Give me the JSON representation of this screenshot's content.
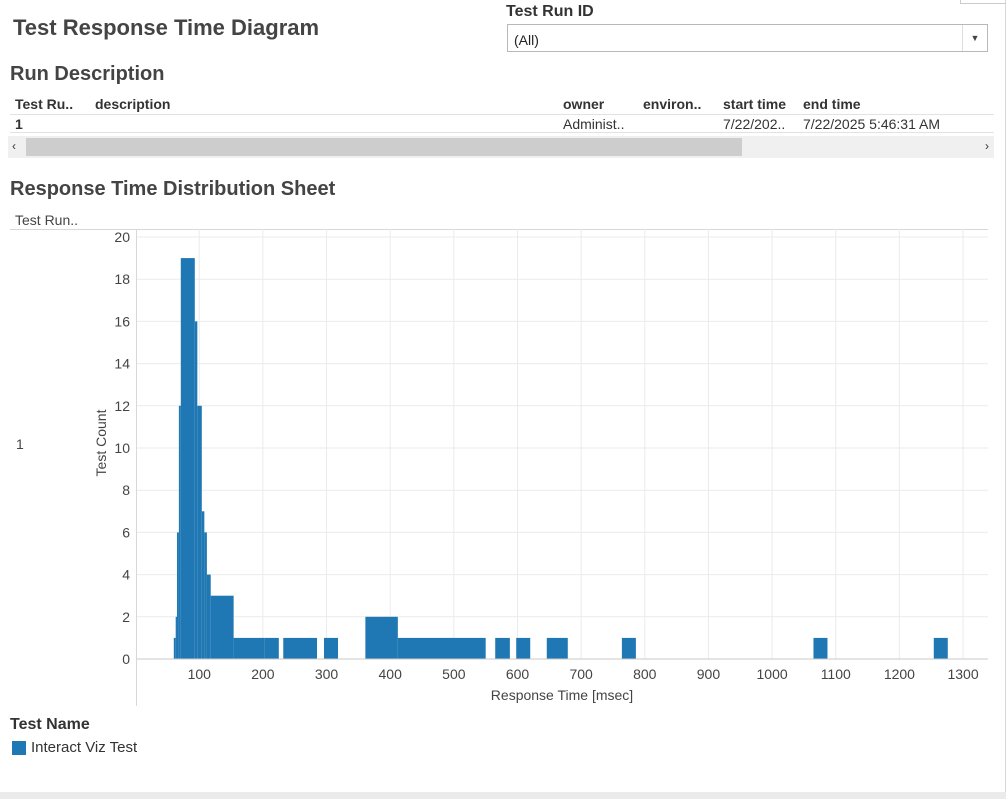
{
  "dashboard": {
    "title": "Test Response Time Diagram"
  },
  "filter": {
    "label": "Test Run ID",
    "value": "(All)"
  },
  "run_description": {
    "title": "Run Description",
    "columns": [
      "Test Ru..",
      "description",
      "owner",
      "environ..",
      "start time",
      "end time"
    ],
    "row": {
      "test_run": "1",
      "description": "",
      "owner": "Administ..",
      "environment": "",
      "start_time": "7/22/202..",
      "end_time": "7/22/2025 5:46:31 AM"
    }
  },
  "distribution": {
    "title": "Response Time Distribution Sheet",
    "row_header": "Test Run..",
    "row_value": "1"
  },
  "legend": {
    "title": "Test Name",
    "item": "Interact Viz Test"
  },
  "colors": {
    "bar": "#1f77b4",
    "grid": "#ebebeb"
  },
  "chart_data": {
    "type": "bar",
    "xlabel": "Response Time [msec]",
    "ylabel": "Test Count",
    "xlim": [
      0,
      1350
    ],
    "ylim": [
      0,
      20
    ],
    "xticks": [
      100,
      200,
      300,
      400,
      500,
      600,
      700,
      800,
      900,
      1000,
      1100,
      1200,
      1300
    ],
    "yticks": [
      0,
      2,
      4,
      6,
      8,
      10,
      12,
      14,
      16,
      18,
      20
    ],
    "grid": true,
    "series": [
      {
        "name": "Interact Viz Test",
        "bins": [
          {
            "x0": 60,
            "x1": 63,
            "count": 1
          },
          {
            "x0": 63,
            "x1": 65,
            "count": 2
          },
          {
            "x0": 65,
            "x1": 68,
            "count": 6
          },
          {
            "x0": 68,
            "x1": 71,
            "count": 12
          },
          {
            "x0": 71,
            "x1": 93,
            "count": 19
          },
          {
            "x0": 93,
            "x1": 97,
            "count": 16
          },
          {
            "x0": 97,
            "x1": 104,
            "count": 12
          },
          {
            "x0": 104,
            "x1": 108,
            "count": 7
          },
          {
            "x0": 108,
            "x1": 112,
            "count": 6
          },
          {
            "x0": 112,
            "x1": 118,
            "count": 4
          },
          {
            "x0": 118,
            "x1": 154,
            "count": 3
          },
          {
            "x0": 154,
            "x1": 203,
            "count": 1
          },
          {
            "x0": 203,
            "x1": 225,
            "count": 1
          },
          {
            "x0": 232,
            "x1": 285,
            "count": 1
          },
          {
            "x0": 296,
            "x1": 318,
            "count": 1
          },
          {
            "x0": 361,
            "x1": 412,
            "count": 2
          },
          {
            "x0": 412,
            "x1": 550,
            "count": 1
          },
          {
            "x0": 565,
            "x1": 588,
            "count": 1
          },
          {
            "x0": 598,
            "x1": 620,
            "count": 1
          },
          {
            "x0": 646,
            "x1": 679,
            "count": 1
          },
          {
            "x0": 764,
            "x1": 786,
            "count": 1
          },
          {
            "x0": 1065,
            "x1": 1087,
            "count": 1
          },
          {
            "x0": 1254,
            "x1": 1276,
            "count": 1
          }
        ]
      }
    ]
  }
}
